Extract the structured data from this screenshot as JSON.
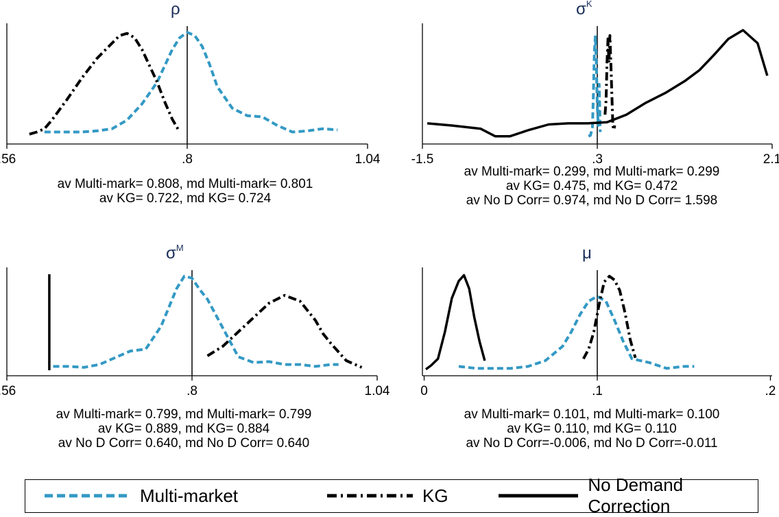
{
  "colors": {
    "multi_market": "#3399c4",
    "kg": "#000000",
    "no_demand": "#000000"
  },
  "legend": {
    "multi_market": "Multi-market",
    "kg": "KG",
    "no_demand": "No Demand Correction"
  },
  "chart_data": [
    {
      "type": "line",
      "title": "ρ",
      "title_sup": "",
      "xlim": [
        0.56,
        1.04
      ],
      "xticks": [
        ".56",
        ".8",
        "1.04"
      ],
      "vline": 0.8,
      "series": [
        {
          "name": "Multi-market",
          "x": [
            0.61,
            0.63,
            0.66,
            0.68,
            0.7,
            0.72,
            0.74,
            0.76,
            0.77,
            0.78,
            0.79,
            0.8,
            0.81,
            0.82,
            0.83,
            0.84,
            0.86,
            0.88,
            0.9,
            0.92,
            0.94,
            0.96,
            0.98,
            1.0
          ],
          "y": [
            0.06,
            0.06,
            0.06,
            0.07,
            0.09,
            0.17,
            0.32,
            0.52,
            0.67,
            0.82,
            0.93,
            0.98,
            0.95,
            0.85,
            0.68,
            0.48,
            0.28,
            0.21,
            0.2,
            0.12,
            0.06,
            0.07,
            0.09,
            0.08
          ]
        },
        {
          "name": "KG",
          "x": [
            0.59,
            0.6,
            0.61,
            0.62,
            0.64,
            0.66,
            0.68,
            0.7,
            0.71,
            0.72,
            0.73,
            0.74,
            0.76,
            0.77,
            0.78,
            0.79
          ],
          "y": [
            0.04,
            0.06,
            0.09,
            0.17,
            0.36,
            0.56,
            0.74,
            0.88,
            0.95,
            0.97,
            0.93,
            0.82,
            0.52,
            0.34,
            0.18,
            0.06
          ]
        }
      ],
      "stats": [
        "av Multi-mark= 0.808, md Multi-mark= 0.801",
        "av KG= 0.722, md KG= 0.724"
      ]
    },
    {
      "type": "line",
      "title": "σ",
      "title_sup": "K",
      "xlim": [
        -1.5,
        2.1
      ],
      "xticks": [
        "-1.5",
        ".3",
        "2.1"
      ],
      "vline": 0.3,
      "series": [
        {
          "name": "Multi-market",
          "x": [
            0.21,
            0.23,
            0.25,
            0.26,
            0.27,
            0.28,
            0.29,
            0.3,
            0.31,
            0.32,
            0.33
          ],
          "y": [
            0.02,
            0.03,
            0.1,
            0.4,
            0.8,
            0.95,
            0.7,
            0.3,
            0.12,
            0.5,
            0.06
          ]
        },
        {
          "name": "KG",
          "x": [
            0.38,
            0.39,
            0.4,
            0.41,
            0.42,
            0.43,
            0.44,
            0.45,
            0.46,
            0.47,
            0.48
          ],
          "y": [
            0.22,
            0.35,
            0.7,
            0.92,
            0.7,
            0.95,
            0.7,
            0.4,
            0.12,
            0.08,
            0.12
          ]
        },
        {
          "name": "No Demand Correction",
          "x": [
            -1.45,
            -1.2,
            -0.9,
            -0.75,
            -0.6,
            -0.4,
            -0.2,
            0.0,
            0.2,
            0.4,
            0.6,
            0.8,
            1.0,
            1.2,
            1.35,
            1.5,
            1.65,
            1.8,
            1.95,
            2.05
          ],
          "y": [
            0.14,
            0.12,
            0.09,
            0.02,
            0.02,
            0.08,
            0.13,
            0.14,
            0.14,
            0.15,
            0.22,
            0.33,
            0.42,
            0.53,
            0.63,
            0.77,
            0.92,
            1.0,
            0.88,
            0.58
          ]
        }
      ],
      "stats": [
        "av Multi-mark= 0.299, md Multi-mark= 0.299",
        "av KG= 0.475, md KG= 0.472",
        "av No D Corr= 0.974, md  No D Corr= 1.598"
      ]
    },
    {
      "type": "line",
      "title": "σ",
      "title_sup": "M",
      "xlim": [
        0.56,
        1.04
      ],
      "xticks": [
        ".56",
        ".8",
        "1.04"
      ],
      "vline": 0.8,
      "series": [
        {
          "name": "Multi-market",
          "x": [
            0.62,
            0.63,
            0.64,
            0.66,
            0.68,
            0.7,
            0.72,
            0.74,
            0.76,
            0.78,
            0.79,
            0.8,
            0.81,
            0.82,
            0.84,
            0.86,
            0.88,
            0.9,
            0.92,
            0.94,
            0.96,
            0.98,
            0.99
          ],
          "y": [
            0.04,
            0.04,
            0.04,
            0.03,
            0.06,
            0.13,
            0.2,
            0.22,
            0.46,
            0.85,
            0.98,
            0.96,
            0.84,
            0.74,
            0.44,
            0.14,
            0.08,
            0.09,
            0.06,
            0.06,
            0.04,
            0.06,
            0.06
          ]
        },
        {
          "name": "KG",
          "x": [
            0.82,
            0.84,
            0.86,
            0.88,
            0.9,
            0.92,
            0.94,
            0.96,
            0.97,
            0.98,
            1.0,
            1.02
          ],
          "y": [
            0.15,
            0.25,
            0.4,
            0.55,
            0.7,
            0.78,
            0.72,
            0.52,
            0.38,
            0.28,
            0.1,
            0.03
          ]
        },
        {
          "name": "No Demand Correction",
          "x": [
            0.615,
            0.615
          ],
          "y": [
            0.0,
            1.0
          ]
        }
      ],
      "stats": [
        "av Multi-mark= 0.799, md Multi-mark= 0.799",
        "av KG= 0.889, md KG= 0.884",
        "av No D Corr= 0.640, md  No D Corr= 0.640"
      ]
    },
    {
      "type": "line",
      "title": "μ",
      "title_sup": "",
      "xlim": [
        -0.001,
        0.201
      ],
      "xticks": [
        "0",
        ".1",
        ".2"
      ],
      "vline": 0.1,
      "series": [
        {
          "name": "Multi-market",
          "x": [
            0.02,
            0.03,
            0.04,
            0.05,
            0.06,
            0.07,
            0.08,
            0.085,
            0.09,
            0.095,
            0.1,
            0.105,
            0.11,
            0.115,
            0.12,
            0.13,
            0.14,
            0.15,
            0.156
          ],
          "y": [
            0.04,
            0.02,
            0.02,
            0.02,
            0.04,
            0.1,
            0.25,
            0.4,
            0.58,
            0.72,
            0.77,
            0.72,
            0.52,
            0.3,
            0.12,
            0.08,
            0.02,
            0.04,
            0.04
          ]
        },
        {
          "name": "KG",
          "x": [
            0.092,
            0.095,
            0.098,
            0.101,
            0.104,
            0.107,
            0.11,
            0.113,
            0.116,
            0.119,
            0.122
          ],
          "y": [
            0.12,
            0.22,
            0.4,
            0.68,
            0.92,
            0.98,
            0.94,
            0.83,
            0.6,
            0.32,
            0.13
          ]
        },
        {
          "name": "No Demand Correction",
          "x": [
            0.001,
            0.004,
            0.008,
            0.012,
            0.016,
            0.02,
            0.023,
            0.026,
            0.029,
            0.032,
            0.035
          ],
          "y": [
            0.01,
            0.05,
            0.12,
            0.4,
            0.75,
            0.93,
            0.99,
            0.85,
            0.55,
            0.3,
            0.1
          ]
        }
      ],
      "stats": [
        "av Multi-mark= 0.101, md Multi-mark= 0.100",
        "av KG= 0.110, md KG= 0.110",
        "av No D Corr=-0.006, md  No D Corr=-0.011"
      ]
    }
  ]
}
